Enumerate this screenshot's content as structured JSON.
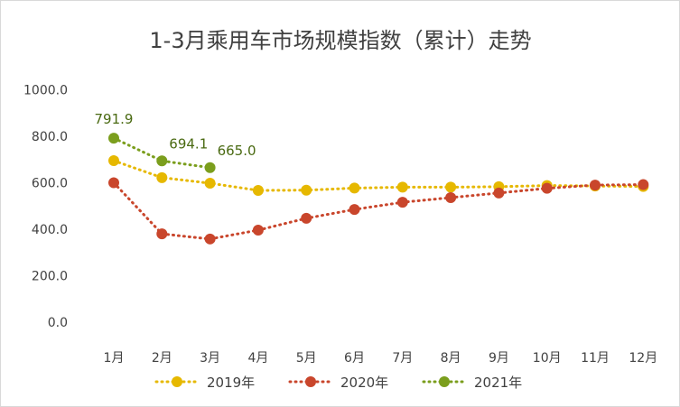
{
  "chart_data": {
    "type": "line",
    "title": "1-3月乘用车市场规模指数（累计）走势",
    "categories": [
      "1月",
      "2月",
      "3月",
      "4月",
      "5月",
      "6月",
      "7月",
      "8月",
      "9月",
      "10月",
      "11月",
      "12月"
    ],
    "ylim": [
      0,
      1000
    ],
    "yticks": [
      "0.0",
      "200.0",
      "400.0",
      "600.0",
      "800.0",
      "1000.0"
    ],
    "grid": false,
    "legend_position": "bottom",
    "series": [
      {
        "name": "2019年",
        "color": "#e6b800",
        "values": [
          695,
          622,
          598,
          567,
          568,
          577,
          581,
          581,
          583,
          588,
          586,
          584
        ]
      },
      {
        "name": "2020年",
        "color": "#c9462c",
        "values": [
          600,
          380,
          358,
          396,
          447,
          485,
          516,
          536,
          556,
          576,
          590,
          592
        ]
      },
      {
        "name": "2021年",
        "color": "#7b9e1d",
        "values": [
          791.9,
          694.1,
          665.0,
          null,
          null,
          null,
          null,
          null,
          null,
          null,
          null,
          null
        ]
      }
    ],
    "data_labels": [
      {
        "series": "2021年",
        "index": 0,
        "text": "791.9"
      },
      {
        "series": "2021年",
        "index": 1,
        "text": "694.1"
      },
      {
        "series": "2021年",
        "index": 2,
        "text": "665.0"
      }
    ]
  }
}
